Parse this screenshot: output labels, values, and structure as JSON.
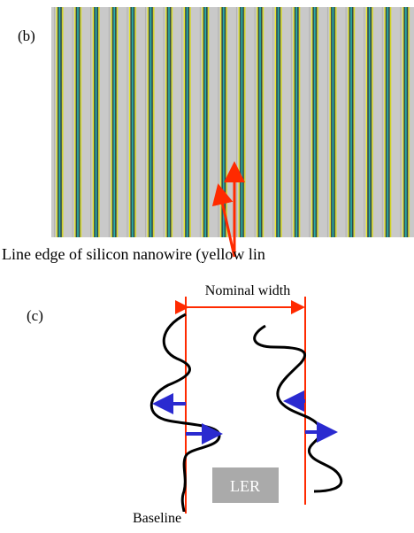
{
  "panel_b": {
    "label": "(b)",
    "caption": "Line edge of silicon nanowire (yellow lin"
  },
  "panel_c": {
    "label": "(c)",
    "nominal_width": "Nominal width",
    "ler": "LER",
    "baseline": "Baseline"
  }
}
